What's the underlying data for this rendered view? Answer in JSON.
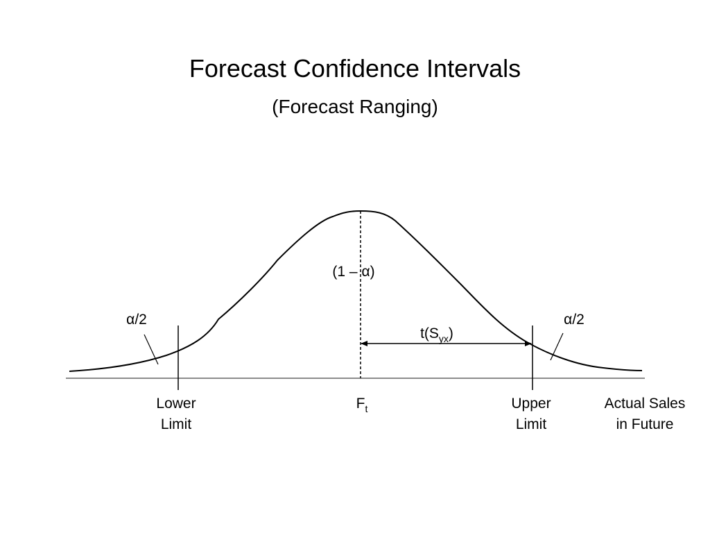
{
  "slide": {
    "title": "Forecast Confidence Intervals",
    "subtitle": "(Forecast Ranging)"
  },
  "diagram": {
    "center_label": "(1 – α)",
    "left_tail_label": "α/2",
    "right_tail_label": "α/2",
    "interval": {
      "main": "t(S",
      "subscript": "yx",
      "close": ")"
    },
    "lower_limit": [
      "Lower",
      "Limit"
    ],
    "forecast": {
      "main": "F",
      "subscript": "t"
    },
    "upper_limit": [
      "Upper",
      "Limit"
    ],
    "axis_label": [
      "Actual Sales",
      "in Future"
    ]
  }
}
